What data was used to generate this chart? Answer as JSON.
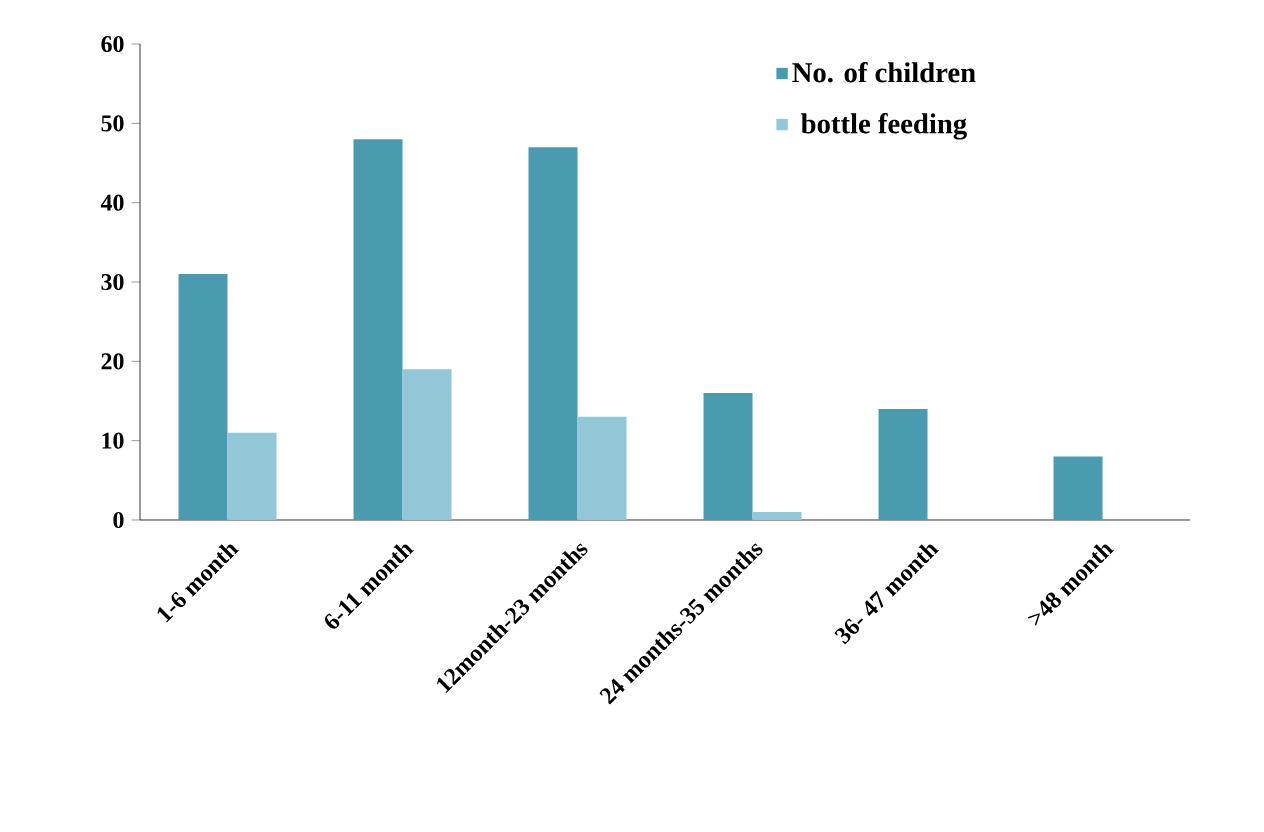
{
  "chart_data": {
    "type": "bar",
    "categories": [
      "1-6 month",
      "6-11 month",
      "12month-23 months",
      "24 months-35 months",
      "36- 47 month",
      ">48 month"
    ],
    "series": [
      {
        "name": "No. of children",
        "color": "#4a9bb0",
        "values": [
          31,
          48,
          47,
          16,
          14,
          8
        ]
      },
      {
        "name": "bottle feeding",
        "color": "#93c6d6",
        "values": [
          11,
          19,
          13,
          1,
          0,
          0
        ]
      }
    ],
    "ylim": [
      0,
      60
    ],
    "yticks": [
      0,
      10,
      20,
      30,
      40,
      50,
      60
    ],
    "legend": "top right",
    "grid": false
  }
}
